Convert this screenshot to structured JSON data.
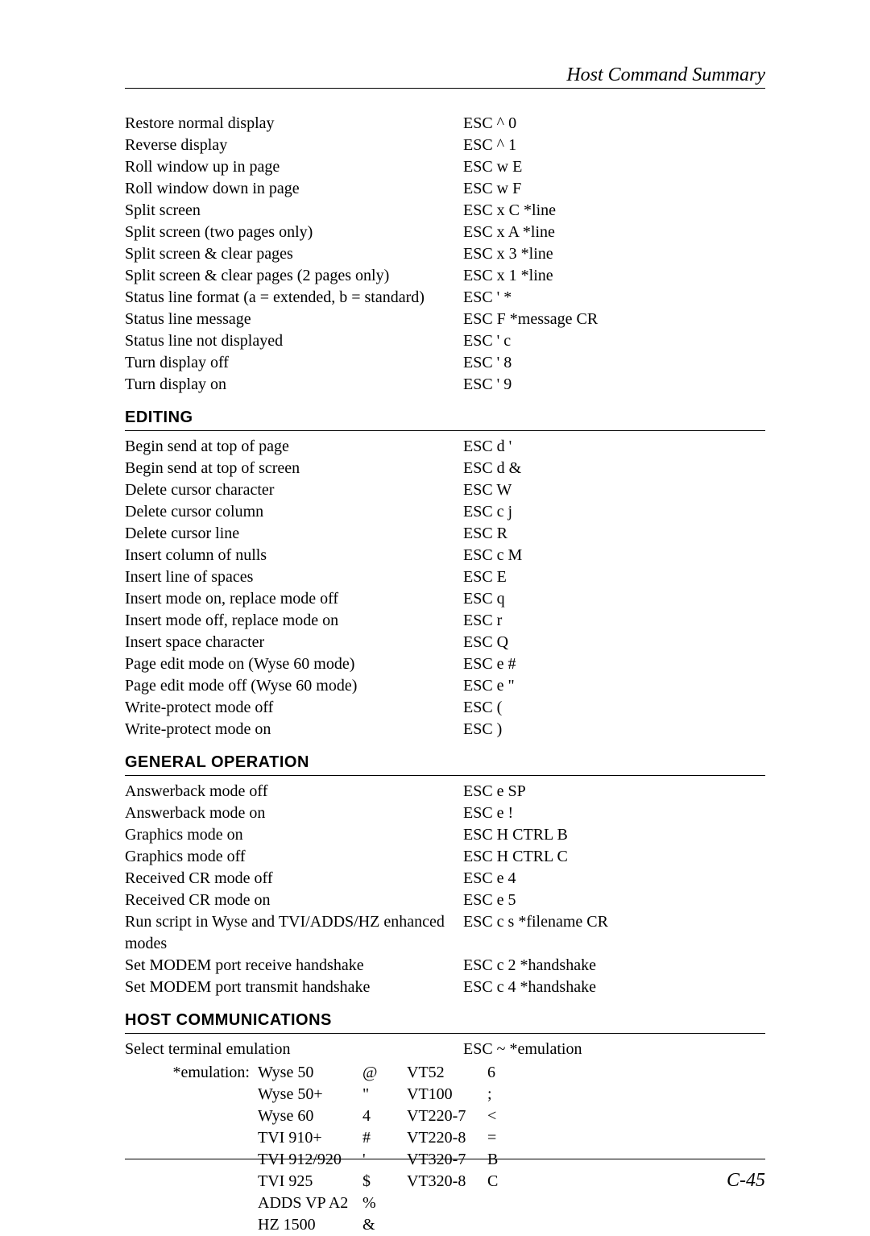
{
  "header": {
    "title": "Host Command Summary"
  },
  "section1_rows": [
    {
      "desc": "Restore normal display",
      "seq": "ESC ^ 0"
    },
    {
      "desc": "Reverse display",
      "seq": "ESC ^ 1"
    },
    {
      "desc": "Roll window up in page",
      "seq": "ESC w E"
    },
    {
      "desc": "Roll window down in page",
      "seq": "ESC w F"
    },
    {
      "desc": "Split screen",
      "seq": "ESC x C *line"
    },
    {
      "desc": "Split screen (two pages only)",
      "seq": "ESC x A *line"
    },
    {
      "desc": "Split screen & clear pages",
      "seq": "ESC x 3 *line"
    },
    {
      "desc": "Split screen & clear pages (2 pages only)",
      "seq": "ESC x 1 *line"
    },
    {
      "desc": "Status line format (a = extended, b = standard)",
      "seq": "ESC ' *"
    },
    {
      "desc": "Status line message",
      "seq": "ESC F *message CR"
    },
    {
      "desc": "Status line not displayed",
      "seq": "ESC ' c"
    },
    {
      "desc": "Turn display off",
      "seq": "ESC ' 8"
    },
    {
      "desc": "Turn display on",
      "seq": "ESC ' 9"
    }
  ],
  "section2": {
    "title": "EDITING"
  },
  "section2_rows": [
    {
      "desc": "Begin send at top of page",
      "seq": "ESC d '"
    },
    {
      "desc": "Begin send at top of screen",
      "seq": "ESC d &"
    },
    {
      "desc": "Delete cursor character",
      "seq": "ESC W"
    },
    {
      "desc": "Delete cursor column",
      "seq": "ESC c j"
    },
    {
      "desc": "Delete cursor line",
      "seq": "ESC R"
    },
    {
      "desc": "Insert column of nulls",
      "seq": "ESC c M"
    },
    {
      "desc": "Insert line of spaces",
      "seq": "ESC E"
    },
    {
      "desc": "Insert mode on, replace mode off",
      "seq": "ESC q"
    },
    {
      "desc": "Insert mode off, replace mode on",
      "seq": "ESC r"
    },
    {
      "desc": "Insert space character",
      "seq": "ESC Q"
    },
    {
      "desc": "Page edit mode on (Wyse 60 mode)",
      "seq": "ESC e #"
    },
    {
      "desc": "Page edit mode off (Wyse 60 mode)",
      "seq": "ESC e \""
    },
    {
      "desc": "Write-protect mode off",
      "seq": "ESC ("
    },
    {
      "desc": "Write-protect mode on",
      "seq": "ESC )"
    }
  ],
  "section3": {
    "title": "GENERAL OPERATION"
  },
  "section3_rows": [
    {
      "desc": "Answerback mode off",
      "seq": "ESC e SP"
    },
    {
      "desc": "Answerback mode on",
      "seq": "ESC e !"
    },
    {
      "desc": "Graphics mode on",
      "seq": "ESC H CTRL B"
    },
    {
      "desc": "Graphics mode off",
      "seq": "ESC H CTRL C"
    },
    {
      "desc": "Received CR mode off",
      "seq": "ESC e 4"
    },
    {
      "desc": "Received CR mode on",
      "seq": "ESC e 5"
    },
    {
      "desc": "Run script in Wyse and TVI/ADDS/HZ enhanced modes",
      "seq": "ESC c s *filename CR"
    },
    {
      "desc": "Set MODEM port receive handshake",
      "seq": "ESC c 2 *handshake"
    },
    {
      "desc": "Set MODEM port transmit handshake",
      "seq": "ESC c 4 *handshake"
    }
  ],
  "section4": {
    "title": "HOST COMMUNICATIONS"
  },
  "section4_rows": [
    {
      "desc": "Select terminal emulation",
      "seq": "ESC ~ *emulation"
    }
  ],
  "emulation_label": "*emulation:",
  "emulation_rows": [
    {
      "name": "Wyse 50",
      "code": "@",
      "name2": "VT52",
      "code2": "6"
    },
    {
      "name": "Wyse 50+",
      "code": "\"",
      "name2": "VT100",
      "code2": ";"
    },
    {
      "name": "Wyse 60",
      "code": "4",
      "name2": "VT220-7",
      "code2": "<"
    },
    {
      "name": "TVI 910+",
      "code": "#",
      "name2": "VT220-8",
      "code2": "="
    },
    {
      "name": "TVI 912/920",
      "code": "'",
      "name2": "VT320-7",
      "code2": "B"
    },
    {
      "name": "TVI 925",
      "code": "$",
      "name2": "VT320-8",
      "code2": "C"
    },
    {
      "name": "ADDS VP A2",
      "code": "%",
      "name2": "",
      "code2": ""
    },
    {
      "name": "HZ 1500",
      "code": "&",
      "name2": "",
      "code2": ""
    }
  ],
  "page_number": "C-45"
}
